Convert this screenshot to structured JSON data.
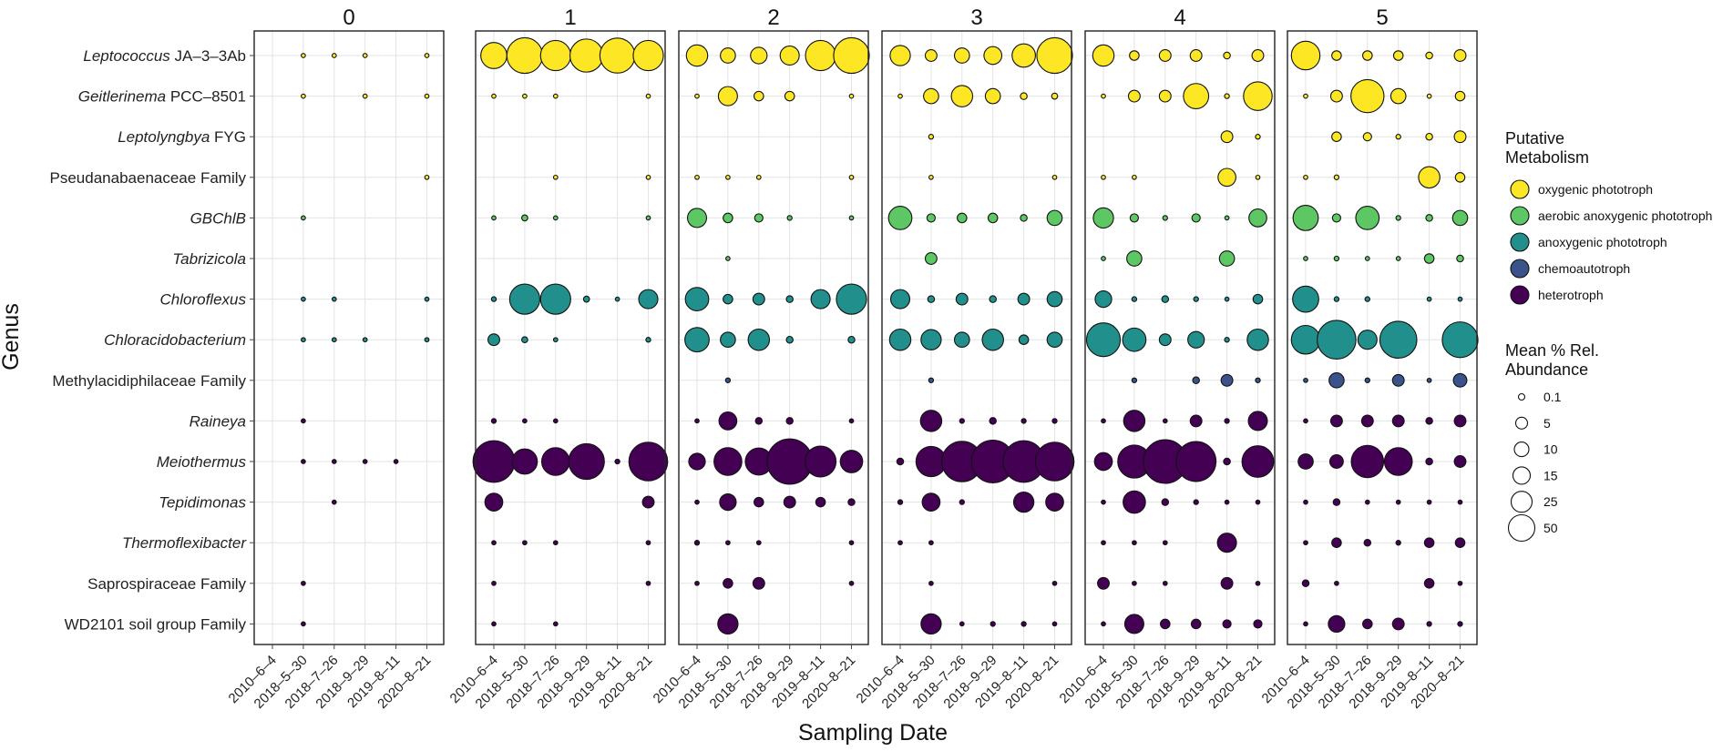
{
  "chart_data": {
    "type": "scatter",
    "subtype": "bubble-faceted",
    "xlabel": "Sampling Date",
    "ylabel": "Genus",
    "facets": [
      "0",
      "1",
      "2",
      "3",
      "4",
      "5"
    ],
    "dates": [
      "2010–6–4",
      "2018–5–30",
      "2018–7–26",
      "2018–9–29",
      "2019–8–11",
      "2020–8–21"
    ],
    "genera": [
      {
        "name": "Leptococcus",
        "suffix": " JA–3–3Ab",
        "italic": true,
        "metabolism": "oxygenic phototroph"
      },
      {
        "name": "Geitlerinema",
        "suffix": " PCC–8501",
        "italic": true,
        "metabolism": "oxygenic phototroph"
      },
      {
        "name": "Leptolyngbya",
        "suffix": " FYG",
        "italic": true,
        "metabolism": "oxygenic phototroph"
      },
      {
        "name": "Pseudanabaenaceae Family",
        "suffix": "",
        "italic": false,
        "metabolism": "oxygenic phototroph"
      },
      {
        "name": "GBChlB",
        "suffix": "",
        "italic": true,
        "metabolism": "aerobic anoxygenic phototroph"
      },
      {
        "name": "Tabrizicola",
        "suffix": "",
        "italic": true,
        "metabolism": "aerobic anoxygenic phototroph"
      },
      {
        "name": "Chloroflexus",
        "suffix": "",
        "italic": true,
        "metabolism": "anoxygenic phototroph"
      },
      {
        "name": "Chloracidobacterium",
        "suffix": "",
        "italic": true,
        "metabolism": "anoxygenic phototroph"
      },
      {
        "name": "Methylacidiphilaceae Family",
        "suffix": "",
        "italic": false,
        "metabolism": "chemoautotroph"
      },
      {
        "name": "Raineya",
        "suffix": "",
        "italic": true,
        "metabolism": "heterotroph"
      },
      {
        "name": "Meiothermus",
        "suffix": "",
        "italic": true,
        "metabolism": "heterotroph"
      },
      {
        "name": "Tepidimonas",
        "suffix": "",
        "italic": true,
        "metabolism": "heterotroph"
      },
      {
        "name": "Thermoflexibacter",
        "suffix": "",
        "italic": true,
        "metabolism": "heterotroph"
      },
      {
        "name": "Saprospiraceae Family",
        "suffix": "",
        "italic": false,
        "metabolism": "heterotroph"
      },
      {
        "name": "WD2101 soil group Family",
        "suffix": "",
        "italic": false,
        "metabolism": "heterotroph"
      }
    ],
    "metabolism_colors": {
      "oxygenic phototroph": "#FDE725",
      "aerobic anoxygenic phototroph": "#5DC863",
      "anoxygenic phototroph": "#21908C",
      "chemoautotroph": "#3B528B",
      "heterotroph": "#440154"
    },
    "abundance": [
      [
        [
          null,
          0.1,
          0.1,
          0.1,
          null,
          0.1
        ],
        [
          null,
          0.1,
          null,
          0.1,
          null,
          0.1
        ],
        [
          null,
          null,
          null,
          null,
          null,
          null
        ],
        [
          null,
          null,
          null,
          null,
          null,
          0.1
        ],
        [
          null,
          0.1,
          null,
          null,
          null,
          null
        ],
        [
          null,
          null,
          null,
          null,
          null,
          null
        ],
        [
          null,
          0.1,
          0.1,
          null,
          null,
          0.1
        ],
        [
          null,
          0.1,
          0.1,
          0.1,
          null,
          0.1
        ],
        [
          null,
          null,
          null,
          null,
          null,
          null
        ],
        [
          null,
          0.1,
          null,
          null,
          null,
          null
        ],
        [
          null,
          0.1,
          0.3,
          0.3,
          0.1,
          null
        ],
        [
          null,
          null,
          0.1,
          null,
          null,
          null
        ],
        [
          null,
          null,
          null,
          null,
          null,
          null
        ],
        [
          null,
          0.1,
          null,
          null,
          null,
          null
        ],
        [
          null,
          0.1,
          null,
          null,
          null,
          null
        ]
      ],
      [
        [
          15,
          28,
          20,
          24,
          27,
          20
        ],
        [
          0.1,
          0.1,
          0.1,
          null,
          null,
          0.1
        ],
        [
          null,
          null,
          null,
          null,
          null,
          null
        ],
        [
          null,
          null,
          0.1,
          null,
          null,
          0.1
        ],
        [
          0.3,
          0.8,
          0.3,
          null,
          null,
          0.1
        ],
        [
          null,
          null,
          null,
          null,
          null,
          null
        ],
        [
          0.5,
          20,
          20,
          0.8,
          0.3,
          8
        ],
        [
          3,
          0.8,
          0.3,
          null,
          null,
          0.5
        ],
        [
          null,
          null,
          null,
          null,
          null,
          null
        ],
        [
          0.5,
          0.1,
          0.1,
          null,
          null,
          null
        ],
        [
          38,
          14,
          17,
          28,
          0.5,
          33
        ],
        [
          7,
          null,
          null,
          null,
          null,
          3
        ],
        [
          0.1,
          0.1,
          0.1,
          null,
          null,
          0.1
        ],
        [
          0.1,
          null,
          null,
          null,
          null,
          0.1
        ],
        [
          0.3,
          null,
          0.1,
          null,
          null,
          null
        ]
      ],
      [
        [
          10,
          5,
          6,
          8,
          20,
          28
        ],
        [
          0.1,
          8,
          2,
          2,
          null,
          0.1
        ],
        [
          null,
          null,
          null,
          null,
          null,
          null
        ],
        [
          0.1,
          0.3,
          0.3,
          null,
          null,
          0.1
        ],
        [
          8,
          2,
          1.5,
          0.5,
          null,
          0.1
        ],
        [
          null,
          0.1,
          null,
          null,
          null,
          null
        ],
        [
          12,
          2,
          3,
          1,
          8,
          20
        ],
        [
          13,
          5,
          10,
          1,
          null,
          1
        ],
        [
          null,
          0.5,
          null,
          null,
          null,
          null
        ],
        [
          0.3,
          7,
          1,
          1,
          null,
          0.3
        ],
        [
          6,
          17,
          16,
          45,
          21,
          11
        ],
        [
          0.3,
          6,
          2,
          3,
          2,
          1
        ],
        [
          0.5,
          0.1,
          0.3,
          null,
          null,
          0.1
        ],
        [
          0.1,
          2,
          3,
          null,
          null,
          0.3
        ],
        [
          null,
          9,
          null,
          null,
          null,
          null
        ]
      ],
      [
        [
          9,
          3,
          5,
          7,
          12,
          28
        ],
        [
          0.1,
          5,
          10,
          5,
          1,
          0.8
        ],
        [
          null,
          0.5,
          null,
          null,
          null,
          null
        ],
        [
          null,
          0.1,
          null,
          null,
          null,
          0.1
        ],
        [
          12,
          1.5,
          2,
          2,
          1,
          5
        ],
        [
          null,
          3,
          null,
          null,
          null,
          null
        ],
        [
          8,
          1,
          3,
          1,
          3,
          5
        ],
        [
          10,
          9,
          5,
          10,
          2,
          5
        ],
        [
          null,
          0.5,
          null,
          null,
          null,
          null
        ],
        [
          null,
          10,
          0.5,
          1,
          0.5,
          0.5
        ],
        [
          1,
          20,
          36,
          40,
          38,
          33
        ],
        [
          0.5,
          7,
          0.5,
          null,
          9,
          7
        ],
        [
          0.3,
          0.3,
          null,
          null,
          null,
          null
        ],
        [
          null,
          0.1,
          null,
          null,
          null,
          0.1
        ],
        [
          null,
          9,
          0.3,
          0.5,
          0.5,
          0.3
        ]
      ],
      [
        [
          10,
          2,
          3,
          3,
          1,
          3
        ],
        [
          0.3,
          3,
          3,
          14,
          0.5,
          18
        ],
        [
          null,
          null,
          null,
          null,
          3,
          0.5
        ],
        [
          0.1,
          0.3,
          null,
          null,
          7,
          0.3
        ],
        [
          9,
          1.5,
          0.5,
          1.5,
          0.3,
          7
        ],
        [
          0.1,
          5,
          null,
          null,
          5,
          null
        ],
        [
          6,
          0.5,
          1,
          0.5,
          0.3,
          2
        ],
        [
          25,
          12,
          3,
          6,
          0.5,
          10
        ],
        [
          null,
          0.5,
          null,
          1,
          3,
          0.5
        ],
        [
          0.3,
          10,
          0.3,
          3,
          0.5,
          8
        ],
        [
          7,
          24,
          42,
          35,
          1,
          22
        ],
        [
          0.3,
          11,
          1,
          0.5,
          0.3,
          0.3
        ],
        [
          0.3,
          0.3,
          0.3,
          null,
          8,
          null
        ],
        [
          3,
          0.3,
          0.3,
          null,
          3,
          0.3
        ],
        [
          0.3,
          8,
          2,
          2,
          1.5,
          1.5
        ]
      ],
      [
        [
          18,
          2,
          2,
          2,
          1,
          3
        ],
        [
          0.1,
          3,
          24,
          5,
          0.3,
          2
        ],
        [
          null,
          2,
          1.5,
          0.5,
          1,
          3
        ],
        [
          0.1,
          0.5,
          null,
          null,
          10,
          2
        ],
        [
          14,
          1.5,
          12,
          0.5,
          1,
          5
        ],
        [
          0.1,
          0.5,
          0.3,
          0.3,
          2,
          1
        ],
        [
          15,
          0.5,
          0.5,
          null,
          0.1,
          0.3
        ],
        [
          18,
          33,
          8,
          30,
          null,
          28
        ],
        [
          0.3,
          5,
          0.5,
          3,
          0.3,
          4
        ],
        [
          0.3,
          3,
          3,
          3,
          1,
          3
        ],
        [
          5,
          4,
          23,
          17,
          1,
          3
        ],
        [
          0.3,
          1,
          0.3,
          0.3,
          0.3,
          0.3
        ],
        [
          0.3,
          2,
          1,
          0.5,
          2,
          2
        ],
        [
          1,
          0.3,
          null,
          null,
          2,
          0.3
        ],
        [
          0.3,
          6,
          2,
          3,
          0.5,
          0.5
        ]
      ]
    ],
    "legend": {
      "color_title_lines": [
        "Putative",
        "Metabolism"
      ],
      "color_items": [
        "oxygenic phototroph",
        "aerobic anoxygenic phototroph",
        "anoxygenic phototroph",
        "chemoautotroph",
        "heterotroph"
      ],
      "size_title_lines": [
        "Mean % Rel.",
        "Abundance"
      ],
      "size_breaks": [
        0.1,
        5,
        10,
        15,
        25,
        50
      ],
      "size_labels": [
        "0.1",
        "5",
        "10",
        "15",
        "25",
        "50"
      ]
    }
  }
}
